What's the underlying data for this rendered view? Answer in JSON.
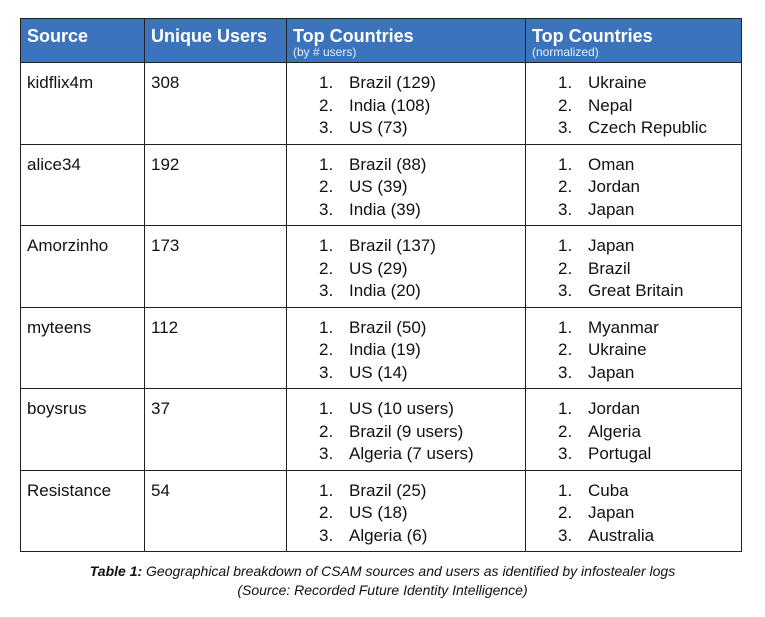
{
  "table": {
    "headers": [
      {
        "main": "Source",
        "sub": ""
      },
      {
        "main": "Unique Users",
        "sub": ""
      },
      {
        "main": "Top Countries",
        "sub": "(by # users)"
      },
      {
        "main": "Top Countries",
        "sub": "(normalized)"
      }
    ],
    "rows": [
      {
        "source": "kidflix4m",
        "users": "308",
        "top_by_users": [
          "Brazil (129)",
          "India (108)",
          "US (73)"
        ],
        "top_normalized": [
          "Ukraine",
          "Nepal",
          "Czech Republic"
        ]
      },
      {
        "source": "alice34",
        "users": "192",
        "top_by_users": [
          "Brazil (88)",
          "US (39)",
          "India (39)"
        ],
        "top_normalized": [
          "Oman",
          "Jordan",
          "Japan"
        ]
      },
      {
        "source": "Amorzinho",
        "users": "173",
        "top_by_users": [
          "Brazil (137)",
          "US (29)",
          "India (20)"
        ],
        "top_normalized": [
          "Japan",
          "Brazil",
          "Great Britain"
        ]
      },
      {
        "source": "myteens",
        "users": "112",
        "top_by_users": [
          "Brazil (50)",
          "India (19)",
          "US (14)"
        ],
        "top_normalized": [
          "Myanmar",
          "Ukraine",
          "Japan"
        ]
      },
      {
        "source": "boysrus",
        "users": "37",
        "top_by_users": [
          "US (10 users)",
          "Brazil (9 users)",
          "Algeria (7 users)"
        ],
        "top_normalized": [
          "Jordan",
          "Algeria",
          "Portugal"
        ]
      },
      {
        "source": "Resistance",
        "users": "54",
        "top_by_users": [
          "Brazil (25)",
          "US (18)",
          "Algeria (6)"
        ],
        "top_normalized": [
          "Cuba",
          "Japan",
          "Australia"
        ]
      }
    ]
  },
  "caption": {
    "label": "Table 1:",
    "text": " Geographical breakdown of CSAM sources and users as identified by infostealer logs",
    "source": "(Source: Recorded Future Identity Intelligence)"
  }
}
